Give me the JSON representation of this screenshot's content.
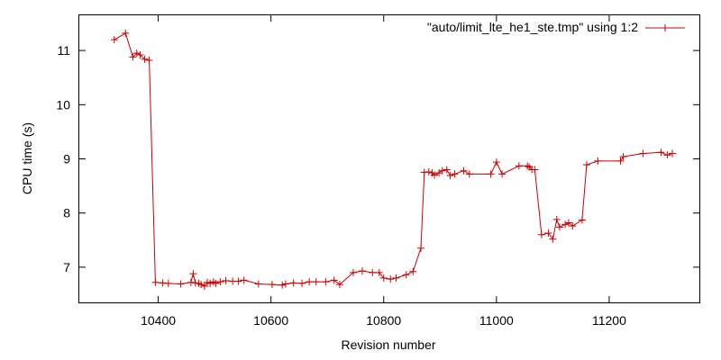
{
  "chart_data": {
    "type": "line",
    "xlabel": "Revision number",
    "ylabel": "CPU time (s)",
    "xlim": [
      10260,
      11360
    ],
    "ylim": [
      6.35,
      11.65
    ],
    "xticks": [
      10400,
      10600,
      10800,
      11000,
      11200
    ],
    "yticks": [
      7,
      8,
      9,
      10,
      11
    ],
    "grid": false,
    "legend": "top-right",
    "series": [
      {
        "name": "\"auto/limit_lte_he1_ste.tmp\" using 1:2",
        "color": "#cc0000",
        "marker": "plus",
        "x": [
          10322,
          10342,
          10355,
          10362,
          10368,
          10376,
          10384,
          10395,
          10408,
          10418,
          10440,
          10458,
          10462,
          10466,
          10472,
          10476,
          10482,
          10487,
          10492,
          10498,
          10502,
          10510,
          10520,
          10532,
          10542,
          10552,
          10578,
          10602,
          10620,
          10626,
          10640,
          10655,
          10668,
          10680,
          10697,
          10712,
          10722,
          10746,
          10762,
          10780,
          10792,
          10800,
          10812,
          10822,
          10840,
          10852,
          10866,
          10872,
          10880,
          10886,
          10890,
          10898,
          10904,
          10912,
          10918,
          10926,
          10942,
          10952,
          10990,
          11000,
          11010,
          11040,
          11055,
          11058,
          11063,
          11068,
          11080,
          11092,
          11100,
          11107,
          11112,
          11122,
          11128,
          11135,
          11152,
          11160,
          11180,
          11220,
          11225,
          11260,
          11292,
          11303,
          11312
        ],
        "y": [
          11.2,
          11.32,
          10.88,
          10.95,
          10.92,
          10.84,
          10.82,
          6.72,
          6.71,
          6.7,
          6.69,
          6.72,
          6.88,
          6.71,
          6.7,
          6.68,
          6.65,
          6.72,
          6.7,
          6.73,
          6.7,
          6.73,
          6.75,
          6.74,
          6.74,
          6.76,
          6.69,
          6.68,
          6.67,
          6.69,
          6.71,
          6.7,
          6.73,
          6.73,
          6.73,
          6.76,
          6.68,
          6.9,
          6.93,
          6.9,
          6.9,
          6.8,
          6.78,
          6.8,
          6.86,
          6.92,
          7.35,
          8.75,
          8.76,
          8.74,
          8.7,
          8.74,
          8.78,
          8.8,
          8.69,
          8.72,
          8.78,
          8.72,
          8.72,
          8.94,
          8.72,
          8.87,
          8.87,
          8.85,
          8.8,
          8.8,
          7.6,
          7.63,
          7.52,
          7.88,
          7.74,
          7.79,
          7.82,
          7.76,
          7.87,
          8.89,
          8.96,
          8.96,
          9.04,
          9.1,
          9.12,
          9.07,
          9.1
        ]
      }
    ]
  }
}
